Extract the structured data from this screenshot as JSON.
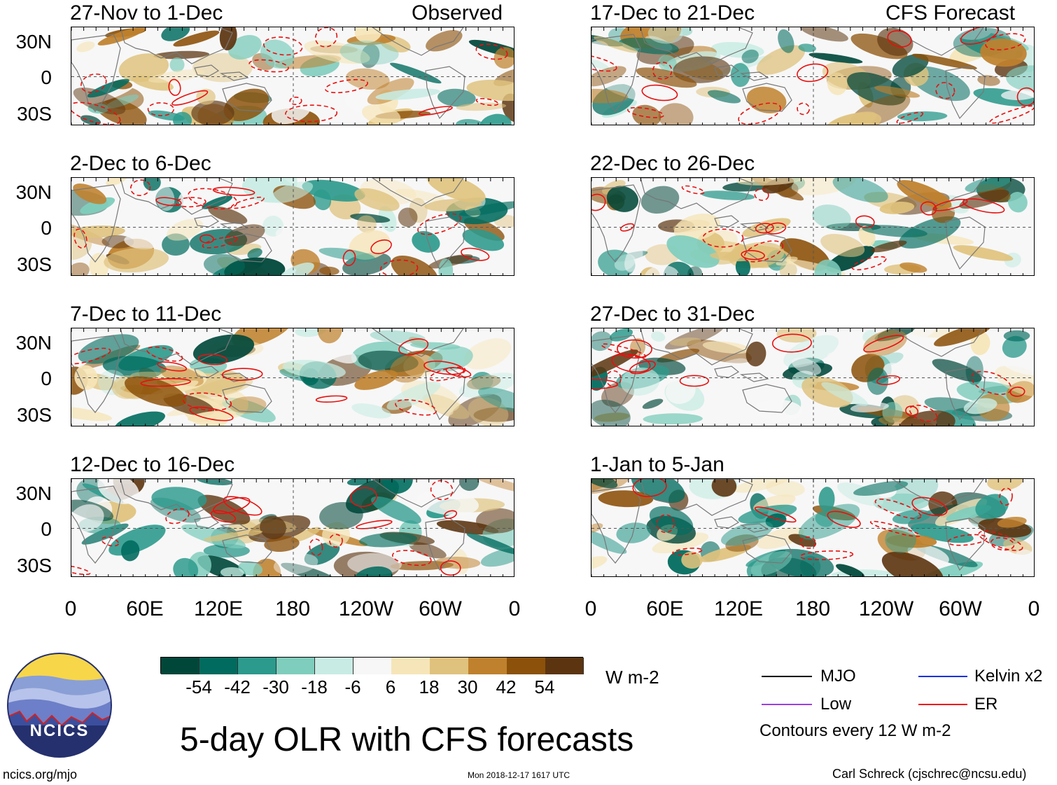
{
  "left_header": "Observed",
  "right_header": "CFS Forecast",
  "left_panels": [
    {
      "title": "27-Nov to 1-Dec"
    },
    {
      "title": "2-Dec to 6-Dec"
    },
    {
      "title": "7-Dec to 11-Dec"
    },
    {
      "title": "12-Dec to 16-Dec"
    }
  ],
  "right_panels": [
    {
      "title": "17-Dec to 21-Dec"
    },
    {
      "title": "22-Dec to 26-Dec"
    },
    {
      "title": "27-Dec to 31-Dec"
    },
    {
      "title": "1-Jan to 5-Jan"
    }
  ],
  "lat_labels": [
    "30N",
    "0",
    "30S"
  ],
  "lon_labels": [
    "0",
    "60E",
    "120E",
    "180",
    "120W",
    "60W",
    "0"
  ],
  "colorbar": {
    "ticks": [
      "-54",
      "-42",
      "-30",
      "-18",
      "-6",
      "6",
      "18",
      "30",
      "42",
      "54"
    ],
    "colors": [
      "#00473a",
      "#006b5e",
      "#2c9a8c",
      "#7fcdbd",
      "#c8ece3",
      "#f7f7f7",
      "#f6e5b8",
      "#dfc27d",
      "#bf812d",
      "#8c510a",
      "#5c3510"
    ],
    "units": "W m-2"
  },
  "legend": {
    "items": [
      {
        "label": "MJO",
        "color": "#000000"
      },
      {
        "label": "Kelvin x2",
        "color": "#1030e0"
      },
      {
        "label": "Low",
        "color": "#9a40e0"
      },
      {
        "label": "ER",
        "color": "#ee1111"
      }
    ],
    "note": "Contours every 12 W m-2"
  },
  "logo_text": "NCICS",
  "main_title": "5-day OLR with CFS forecasts",
  "footer_left": "ncics.org/mjo",
  "footer_center": "Mon 2018-12-17 1617 UTC",
  "footer_right": "Carl Schreck (cjschrec@ncsu.edu)"
}
